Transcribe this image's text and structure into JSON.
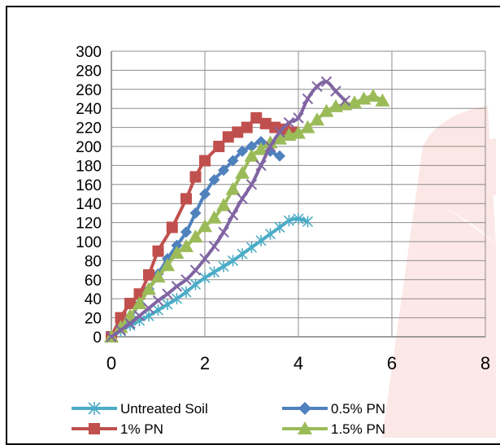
{
  "chart_data": {
    "type": "line",
    "title": "",
    "xlabel": "",
    "ylabel": "",
    "xlim": [
      0,
      8
    ],
    "ylim": [
      0,
      300
    ],
    "x_ticks": [
      "0",
      "2",
      "4",
      "6",
      "8"
    ],
    "y_ticks": [
      "0",
      "20",
      "40",
      "60",
      "80",
      "100",
      "120",
      "140",
      "160",
      "180",
      "200",
      "220",
      "240",
      "260",
      "280",
      "300"
    ],
    "grid": true,
    "legend_position": "bottom",
    "series": [
      {
        "name": "Untreated Soil",
        "color": "#4bacc6",
        "marker": "asterisk",
        "points": [
          [
            0,
            0
          ],
          [
            0.2,
            6
          ],
          [
            0.4,
            12
          ],
          [
            0.6,
            17
          ],
          [
            0.8,
            22
          ],
          [
            1.0,
            28
          ],
          [
            1.2,
            34
          ],
          [
            1.4,
            40
          ],
          [
            1.6,
            47
          ],
          [
            1.8,
            55
          ],
          [
            2.0,
            62
          ],
          [
            2.2,
            68
          ],
          [
            2.4,
            74
          ],
          [
            2.6,
            80
          ],
          [
            2.8,
            87
          ],
          [
            3.0,
            94
          ],
          [
            3.2,
            101
          ],
          [
            3.4,
            108
          ],
          [
            3.6,
            115
          ],
          [
            3.8,
            122
          ],
          [
            4.0,
            124
          ],
          [
            4.2,
            121
          ]
        ]
      },
      {
        "name": "0.5% PN",
        "color": "#4f81bd",
        "marker": "diamond",
        "points": [
          [
            0,
            0
          ],
          [
            0.2,
            10
          ],
          [
            0.4,
            20
          ],
          [
            0.6,
            35
          ],
          [
            0.8,
            50
          ],
          [
            1.0,
            66
          ],
          [
            1.2,
            82
          ],
          [
            1.4,
            96
          ],
          [
            1.6,
            110
          ],
          [
            1.8,
            130
          ],
          [
            2.0,
            150
          ],
          [
            2.2,
            165
          ],
          [
            2.4,
            175
          ],
          [
            2.6,
            185
          ],
          [
            2.8,
            195
          ],
          [
            3.0,
            200
          ],
          [
            3.2,
            205
          ],
          [
            3.4,
            195
          ],
          [
            3.6,
            190
          ]
        ]
      },
      {
        "name": "1% PN",
        "color": "#c0504d",
        "marker": "square",
        "points": [
          [
            0,
            0
          ],
          [
            0.2,
            20
          ],
          [
            0.4,
            35
          ],
          [
            0.6,
            45
          ],
          [
            0.8,
            65
          ],
          [
            1.0,
            90
          ],
          [
            1.3,
            115
          ],
          [
            1.6,
            145
          ],
          [
            1.8,
            168
          ],
          [
            2.0,
            185
          ],
          [
            2.3,
            200
          ],
          [
            2.5,
            210
          ],
          [
            2.7,
            215
          ],
          [
            2.9,
            220
          ],
          [
            3.1,
            230
          ],
          [
            3.3,
            224
          ],
          [
            3.5,
            220
          ],
          [
            3.7,
            218
          ],
          [
            3.9,
            215
          ]
        ]
      },
      {
        "name": "1.5% PN",
        "color": "#9bbb59",
        "marker": "triangle",
        "points": [
          [
            0,
            0
          ],
          [
            0.2,
            10
          ],
          [
            0.4,
            22
          ],
          [
            0.6,
            35
          ],
          [
            0.8,
            50
          ],
          [
            1.0,
            63
          ],
          [
            1.2,
            75
          ],
          [
            1.4,
            88
          ],
          [
            1.6,
            95
          ],
          [
            1.8,
            105
          ],
          [
            2.0,
            116
          ],
          [
            2.2,
            125
          ],
          [
            2.4,
            138
          ],
          [
            2.6,
            155
          ],
          [
            2.8,
            172
          ],
          [
            3.0,
            190
          ],
          [
            3.2,
            197
          ],
          [
            3.4,
            204
          ],
          [
            3.6,
            208
          ],
          [
            3.8,
            212
          ],
          [
            4.0,
            214
          ],
          [
            4.2,
            220
          ],
          [
            4.4,
            228
          ],
          [
            4.6,
            237
          ],
          [
            4.8,
            242
          ],
          [
            5.0,
            244
          ],
          [
            5.2,
            246
          ],
          [
            5.4,
            250
          ],
          [
            5.6,
            253
          ],
          [
            5.8,
            248
          ]
        ]
      },
      {
        "name": "",
        "color": "#8064a2",
        "marker": "x",
        "points": [
          [
            0,
            0
          ],
          [
            0.2,
            7
          ],
          [
            0.4,
            14
          ],
          [
            0.6,
            22
          ],
          [
            0.8,
            30
          ],
          [
            1.0,
            38
          ],
          [
            1.2,
            45
          ],
          [
            1.4,
            53
          ],
          [
            1.6,
            60
          ],
          [
            1.8,
            70
          ],
          [
            2.0,
            82
          ],
          [
            2.2,
            95
          ],
          [
            2.4,
            110
          ],
          [
            2.6,
            128
          ],
          [
            2.8,
            145
          ],
          [
            3.0,
            160
          ],
          [
            3.2,
            180
          ],
          [
            3.4,
            200
          ],
          [
            3.6,
            215
          ],
          [
            3.8,
            225
          ],
          [
            4.0,
            230
          ],
          [
            4.2,
            250
          ],
          [
            4.4,
            263
          ],
          [
            4.6,
            268
          ],
          [
            4.8,
            258
          ],
          [
            5.0,
            248
          ]
        ]
      }
    ]
  }
}
